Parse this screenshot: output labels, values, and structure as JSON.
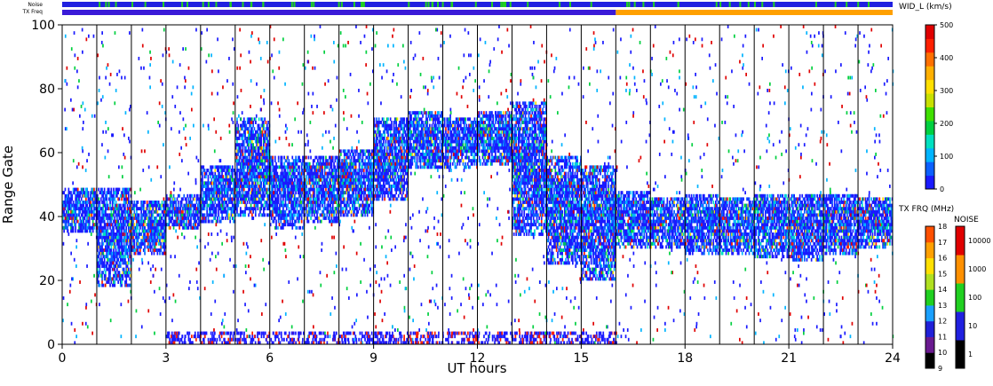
{
  "chart_data": [
    {
      "type": "heatmap",
      "title": "",
      "xlabel": "UT hours",
      "ylabel": "Range Gate",
      "xlim": [
        0,
        24
      ],
      "ylim": [
        0,
        100
      ],
      "x_ticks": [
        0,
        3,
        6,
        9,
        12,
        15,
        18,
        21,
        24
      ],
      "y_ticks": [
        0,
        20,
        40,
        60,
        80,
        100
      ],
      "grid": "vertical lines at 1-hour scan boundaries",
      "colorbar": {
        "label": "WID_L (km/s)",
        "range": [
          0,
          500
        ],
        "ticks": [
          0,
          100,
          200,
          300,
          400,
          500
        ]
      },
      "echo_bands": [
        {
          "start": 0.0,
          "end": 1.0,
          "low": 35,
          "high": 48
        },
        {
          "start": 1.0,
          "end": 2.0,
          "low": 18,
          "high": 48
        },
        {
          "start": 2.0,
          "end": 3.0,
          "low": 28,
          "high": 44
        },
        {
          "start": 3.0,
          "end": 4.0,
          "low": 36,
          "high": 46
        },
        {
          "start": 4.0,
          "end": 5.0,
          "low": 38,
          "high": 55
        },
        {
          "start": 5.0,
          "end": 6.0,
          "low": 40,
          "high": 70
        },
        {
          "start": 6.0,
          "end": 7.0,
          "low": 36,
          "high": 58
        },
        {
          "start": 7.0,
          "end": 8.0,
          "low": 38,
          "high": 58
        },
        {
          "start": 8.0,
          "end": 9.0,
          "low": 40,
          "high": 60
        },
        {
          "start": 9.0,
          "end": 10.0,
          "low": 45,
          "high": 70
        },
        {
          "start": 10.0,
          "end": 11.0,
          "low": 55,
          "high": 72
        },
        {
          "start": 11.0,
          "end": 12.0,
          "low": 55,
          "high": 70
        },
        {
          "start": 12.0,
          "end": 13.0,
          "low": 56,
          "high": 72
        },
        {
          "start": 13.0,
          "end": 14.0,
          "low": 34,
          "high": 75
        },
        {
          "start": 14.0,
          "end": 15.0,
          "low": 25,
          "high": 58
        },
        {
          "start": 15.0,
          "end": 16.0,
          "low": 20,
          "high": 55
        },
        {
          "start": 16.0,
          "end": 17.0,
          "low": 30,
          "high": 47
        },
        {
          "start": 17.0,
          "end": 18.0,
          "low": 30,
          "high": 45
        },
        {
          "start": 18.0,
          "end": 19.0,
          "low": 28,
          "high": 46
        },
        {
          "start": 19.0,
          "end": 20.0,
          "low": 28,
          "high": 45
        },
        {
          "start": 20.0,
          "end": 21.0,
          "low": 27,
          "high": 46
        },
        {
          "start": 21.0,
          "end": 22.0,
          "low": 26,
          "high": 46
        },
        {
          "start": 22.0,
          "end": 23.0,
          "low": 28,
          "high": 46
        },
        {
          "start": 23.0,
          "end": 24.0,
          "low": 30,
          "high": 45
        }
      ]
    },
    {
      "type": "bar",
      "title": "TX FRQ (MHz)",
      "ticks": [
        9,
        10,
        11,
        12,
        13,
        14,
        15,
        16,
        17,
        18
      ],
      "segments": [
        {
          "start": 0,
          "end": 16,
          "value": 11
        },
        {
          "start": 16,
          "end": 24,
          "value": 15
        }
      ]
    },
    {
      "type": "bar",
      "title": "NOISE",
      "ticks": [
        "1",
        "10",
        "100",
        "1000",
        "10000"
      ],
      "segments": [
        {
          "start": 0,
          "end": 24,
          "value": 10
        }
      ]
    }
  ],
  "strip_labels": {
    "noise": "Noise",
    "tx_freq": "TX Freq"
  },
  "colors": {
    "scale_wid": [
      "#1a1aff",
      "#0c60ff",
      "#00b4ff",
      "#00e0c0",
      "#00d040",
      "#40e000",
      "#c8e000",
      "#ffe000",
      "#ffb000",
      "#ff7000",
      "#ff2000",
      "#e00000"
    ],
    "scale_tx": [
      "#000000",
      "#6a1a90",
      "#2020d8",
      "#1aa0ff",
      "#20d020",
      "#b0e020",
      "#ffe000",
      "#ffa000",
      "#ff5000",
      "#e00000"
    ],
    "scale_noise": [
      "#000000",
      "#2020e0",
      "#20d020",
      "#ff9000",
      "#e00000"
    ],
    "tx_before": "#3a1ad8",
    "tx_after": "#ffa000",
    "noise_base": "#2020e0",
    "noise_spike": "#20d020"
  }
}
